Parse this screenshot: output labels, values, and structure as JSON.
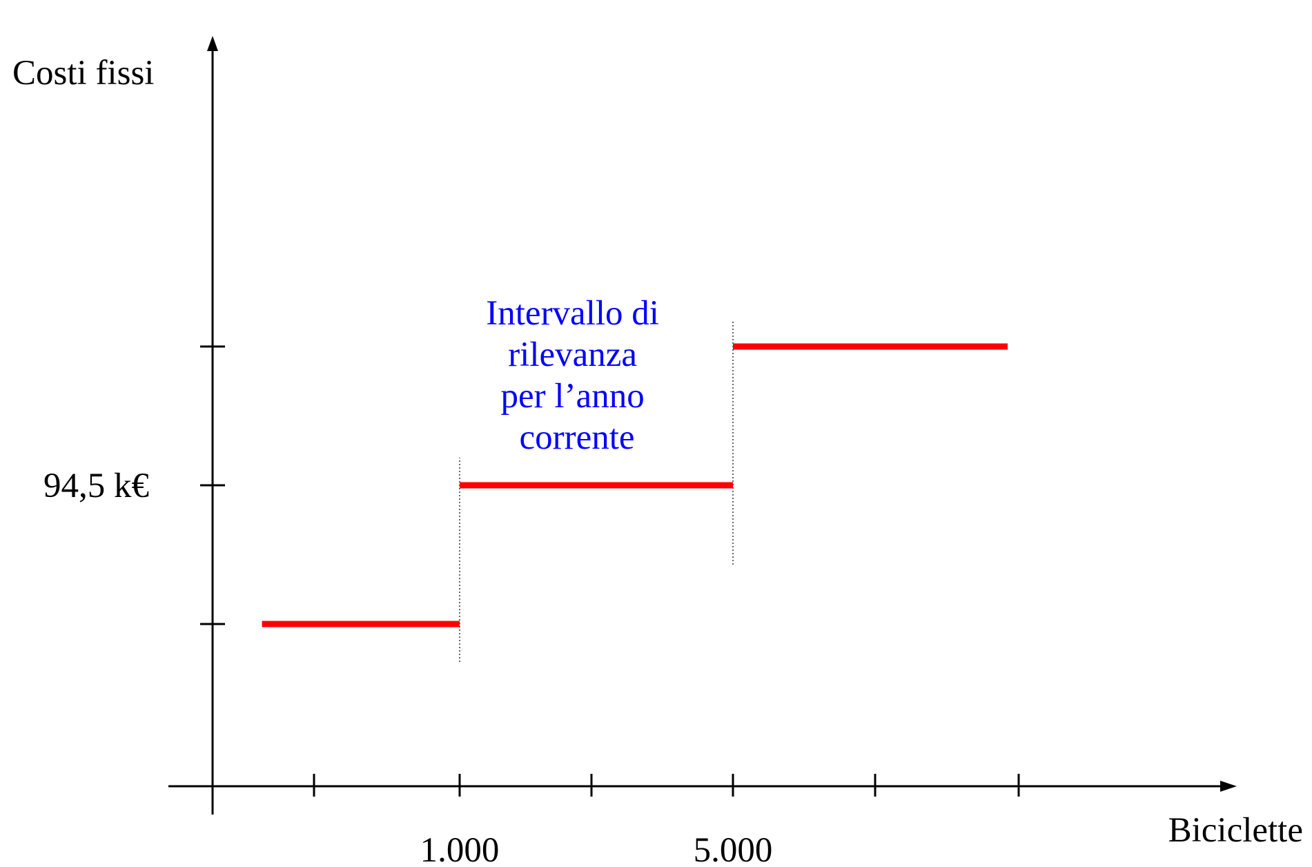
{
  "chart_data": {
    "type": "line",
    "title": "",
    "xlabel": "Biciclette",
    "ylabel": "Costi fissi",
    "x_tick_labels": [
      {
        "value": 1000,
        "label": "1.000"
      },
      {
        "value": 5000,
        "label": "5.000"
      }
    ],
    "y_tick_labels": [
      {
        "value": 94.5,
        "label": "94,5 k€"
      }
    ],
    "series": [
      {
        "steps": [
          {
            "x_start": 200,
            "x_end": 1000,
            "y": 50
          },
          {
            "x_start": 1000,
            "x_end": 5000,
            "y": 94.5
          },
          {
            "x_start": 5000,
            "x_end": 9000,
            "y": 139
          }
        ],
        "color": "#ff0000"
      }
    ],
    "boundaries": [
      1000,
      5000
    ],
    "annotation": {
      "lines": [
        "Intervallo di",
        "rilevanza",
        "per l’anno",
        "corrente"
      ],
      "color": "#0000ff"
    },
    "xlim": [
      0,
      13000
    ],
    "ylim": [
      0,
      200
    ],
    "grid": false,
    "legend": "none"
  }
}
